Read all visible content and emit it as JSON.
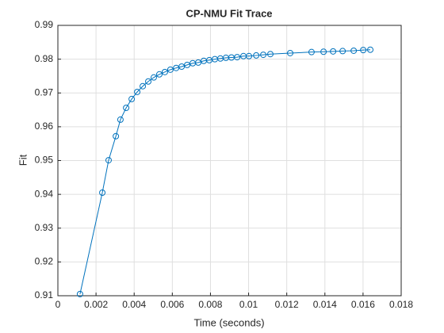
{
  "chart_data": {
    "type": "line",
    "title": "CP-NMU Fit Trace",
    "xlabel": "Time (seconds)",
    "ylabel": "Fit",
    "x": [
      0.00116,
      0.00233,
      0.00266,
      0.00304,
      0.00328,
      0.00358,
      0.00387,
      0.00416,
      0.00445,
      0.00474,
      0.00503,
      0.00532,
      0.00561,
      0.0059,
      0.0062,
      0.00649,
      0.00678,
      0.00707,
      0.00736,
      0.00765,
      0.00794,
      0.00823,
      0.00852,
      0.00881,
      0.0091,
      0.0094,
      0.00973,
      0.01002,
      0.0104,
      0.01077,
      0.01114,
      0.01218,
      0.0133,
      0.01393,
      0.01443,
      0.01493,
      0.01551,
      0.01601,
      0.01638
    ],
    "series": [
      {
        "name": "Fit",
        "color": "#0072bd",
        "values": [
          0.9105,
          0.9405,
          0.9501,
          0.9572,
          0.9621,
          0.9656,
          0.9682,
          0.9703,
          0.972,
          0.9734,
          0.9746,
          0.9755,
          0.9762,
          0.9769,
          0.9774,
          0.9778,
          0.9783,
          0.9788,
          0.979,
          0.9795,
          0.9797,
          0.98,
          0.9802,
          0.9804,
          0.9805,
          0.9806,
          0.9809,
          0.9809,
          0.9811,
          0.9813,
          0.9815,
          0.9818,
          0.9821,
          0.9822,
          0.9823,
          0.9824,
          0.9825,
          0.9827,
          0.9828
        ]
      }
    ],
    "xlim": [
      0,
      0.018
    ],
    "xticks": [
      0,
      0.002,
      0.004,
      0.006,
      0.008,
      0.01,
      0.012,
      0.014,
      0.016,
      0.018
    ],
    "ylim": [
      0.91,
      0.99
    ],
    "yticks": [
      0.91,
      0.92,
      0.93,
      0.94,
      0.95,
      0.96,
      0.97,
      0.98,
      0.99
    ],
    "grid": true,
    "marker": "circle"
  }
}
